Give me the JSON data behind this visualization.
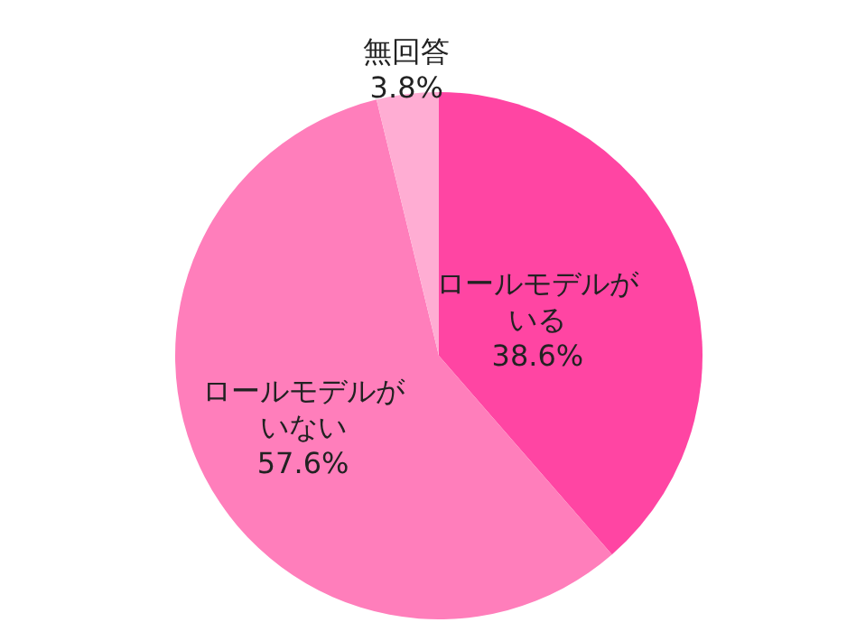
{
  "chart_data": {
    "type": "pie",
    "categories": [
      "ロールモデルがいる",
      "ロールモデルがいない",
      "無回答"
    ],
    "values": [
      38.6,
      57.6,
      3.8
    ],
    "colors": [
      "#ff45a3",
      "#ff7ebb",
      "#ffadd3"
    ],
    "value_labels": [
      "38.6%",
      "57.6%",
      "3.8%"
    ]
  }
}
